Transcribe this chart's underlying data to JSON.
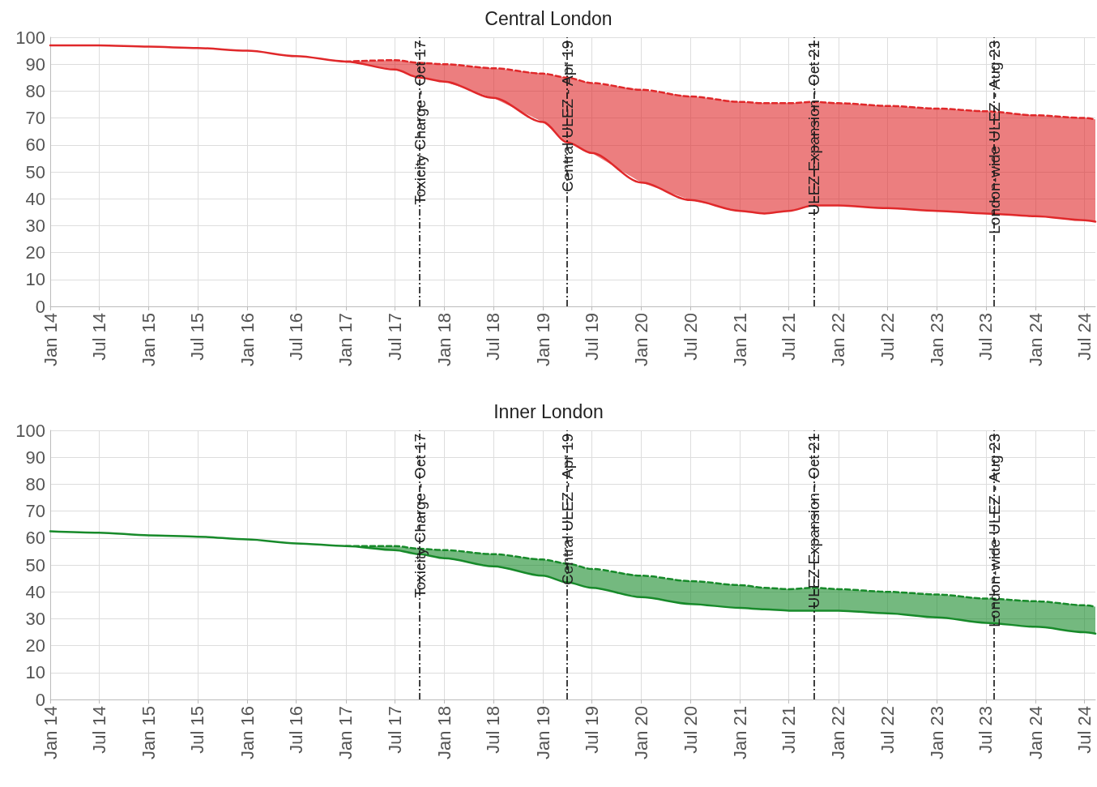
{
  "chart_data": [
    {
      "type": "line",
      "title": "Central London",
      "x": [
        "2014-01",
        "2014-07",
        "2015-01",
        "2015-07",
        "2016-01",
        "2016-07",
        "2017-01",
        "2017-07",
        "2017-10",
        "2018-01",
        "2018-07",
        "2019-01",
        "2019-04",
        "2019-07",
        "2020-01",
        "2020-07",
        "2021-01",
        "2021-04",
        "2021-07",
        "2021-10",
        "2022-01",
        "2022-07",
        "2023-01",
        "2023-07",
        "2024-01",
        "2024-07",
        "2024-08-10"
      ],
      "series": [
        {
          "color": "#e0282a",
          "line_style": "solid",
          "values": [
            97,
            97,
            96.5,
            96,
            95,
            93,
            91,
            88,
            85,
            83.5,
            77.5,
            68.5,
            61,
            57,
            46,
            39.5,
            35.5,
            34.5,
            35.5,
            37.5,
            37.5,
            36.5,
            35.5,
            34.5,
            33.5,
            32,
            31.5
          ]
        },
        {
          "color": "#e0282a",
          "line_style": "dashed",
          "values": [
            null,
            null,
            null,
            null,
            null,
            null,
            91,
            91.5,
            90.5,
            90,
            88.5,
            86.5,
            85,
            83,
            80.5,
            78,
            76,
            75.5,
            75.5,
            76,
            75.5,
            74.5,
            73.5,
            72.5,
            71,
            70,
            69.5
          ],
          "lower": [
            null,
            null,
            null,
            null,
            null,
            null,
            91,
            88,
            85,
            83.5,
            77.5,
            68.5,
            61,
            57,
            46,
            39.5,
            35.5,
            34.5,
            35.5,
            37.5,
            37.5,
            36.5,
            35.5,
            34.5,
            33.5,
            32,
            31.5
          ],
          "upper": [
            null,
            null,
            null,
            null,
            null,
            null,
            91,
            91.5,
            90.5,
            90,
            88.5,
            86.5,
            85,
            83,
            80.5,
            78,
            76,
            75.5,
            75.5,
            76,
            75.5,
            74.5,
            73.5,
            72.5,
            71,
            70,
            69.5
          ]
        }
      ],
      "xlim": [
        "2014-01",
        "2024-08-10"
      ],
      "xticks": [
        {
          "value": "2014-01",
          "label": "Jan 14"
        },
        {
          "value": "2014-07",
          "label": "Jul 14"
        },
        {
          "value": "2015-01",
          "label": "Jan 15"
        },
        {
          "value": "2015-07",
          "label": "Jul 15"
        },
        {
          "value": "2016-01",
          "label": "Jan 16"
        },
        {
          "value": "2016-07",
          "label": "Jul 16"
        },
        {
          "value": "2017-01",
          "label": "Jan 17"
        },
        {
          "value": "2017-07",
          "label": "Jul 17"
        },
        {
          "value": "2018-01",
          "label": "Jan 18"
        },
        {
          "value": "2018-07",
          "label": "Jul 18"
        },
        {
          "value": "2019-01",
          "label": "Jan 19"
        },
        {
          "value": "2019-07",
          "label": "Jul 19"
        },
        {
          "value": "2020-01",
          "label": "Jan 20"
        },
        {
          "value": "2020-07",
          "label": "Jul 20"
        },
        {
          "value": "2021-01",
          "label": "Jan 21"
        },
        {
          "value": "2021-07",
          "label": "Jul 21"
        },
        {
          "value": "2022-01",
          "label": "Jan 22"
        },
        {
          "value": "2022-07",
          "label": "Jul 22"
        },
        {
          "value": "2023-01",
          "label": "Jan 23"
        },
        {
          "value": "2023-07",
          "label": "Jul 23"
        },
        {
          "value": "2024-01",
          "label": "Jan 24"
        },
        {
          "value": "2024-07",
          "label": "Jul 24"
        }
      ],
      "ylim": [
        0,
        100
      ],
      "yticks": [
        0,
        10,
        20,
        30,
        40,
        50,
        60,
        70,
        80,
        90,
        100
      ],
      "grid": true,
      "marker": "none",
      "ref_lines": [
        {
          "axis": "x",
          "value": "2017-10",
          "label": "Toxicity Charge - Oct 17",
          "color": "#000000",
          "line_style": "dashdot"
        },
        {
          "axis": "x",
          "value": "2019-04",
          "label": "Central ULEZ - Apr 19",
          "color": "#000000",
          "line_style": "dashdot"
        },
        {
          "axis": "x",
          "value": "2021-10",
          "label": "ULEZ Expansion - Oct 21",
          "color": "#000000",
          "line_style": "dashdot"
        },
        {
          "axis": "x",
          "value": "2023-08",
          "label": "London-wide ULEZ - Aug 23",
          "color": "#000000",
          "line_style": "dashdot"
        }
      ]
    },
    {
      "type": "line",
      "title": "Inner London",
      "x": [
        "2014-01",
        "2014-07",
        "2015-01",
        "2015-07",
        "2016-01",
        "2016-07",
        "2017-01",
        "2017-07",
        "2017-10",
        "2018-01",
        "2018-07",
        "2019-01",
        "2019-04",
        "2019-07",
        "2020-01",
        "2020-07",
        "2021-01",
        "2021-04",
        "2021-07",
        "2021-10",
        "2022-01",
        "2022-07",
        "2023-01",
        "2023-07",
        "2024-01",
        "2024-07",
        "2024-08-10"
      ],
      "series": [
        {
          "color": "#178a2a",
          "line_style": "solid",
          "values": [
            62.5,
            62,
            61,
            60.5,
            59.5,
            58,
            57,
            55.5,
            54,
            52.5,
            49.5,
            46,
            43.5,
            41.5,
            38,
            35.5,
            34,
            33.5,
            33,
            33,
            33,
            32,
            30.5,
            28.5,
            27,
            25,
            24.5
          ]
        },
        {
          "color": "#178a2a",
          "line_style": "dashed",
          "values": [
            null,
            null,
            null,
            null,
            null,
            null,
            57,
            57,
            56,
            55.5,
            54,
            52,
            50.5,
            48.5,
            46,
            44,
            42.5,
            41.5,
            41,
            41.5,
            41,
            40,
            39,
            37.5,
            36.5,
            35,
            34.5
          ],
          "lower": [
            null,
            null,
            null,
            null,
            null,
            null,
            57,
            55.5,
            54,
            52.5,
            49.5,
            46,
            43.5,
            41.5,
            38,
            35.5,
            34,
            33.5,
            33,
            33,
            33,
            32,
            30.5,
            28.5,
            27,
            25,
            24.5
          ],
          "upper": [
            null,
            null,
            null,
            null,
            null,
            null,
            57,
            57,
            56,
            55.5,
            54,
            52,
            50.5,
            48.5,
            46,
            44,
            42.5,
            41.5,
            41,
            41.5,
            41,
            40,
            39,
            37.5,
            36.5,
            35,
            34.5
          ]
        }
      ],
      "xlim": [
        "2014-01",
        "2024-08-10"
      ],
      "xticks": [
        {
          "value": "2014-01",
          "label": "Jan 14"
        },
        {
          "value": "2014-07",
          "label": "Jul 14"
        },
        {
          "value": "2015-01",
          "label": "Jan 15"
        },
        {
          "value": "2015-07",
          "label": "Jul 15"
        },
        {
          "value": "2016-01",
          "label": "Jan 16"
        },
        {
          "value": "2016-07",
          "label": "Jul 16"
        },
        {
          "value": "2017-01",
          "label": "Jan 17"
        },
        {
          "value": "2017-07",
          "label": "Jul 17"
        },
        {
          "value": "2018-01",
          "label": "Jan 18"
        },
        {
          "value": "2018-07",
          "label": "Jul 18"
        },
        {
          "value": "2019-01",
          "label": "Jan 19"
        },
        {
          "value": "2019-07",
          "label": "Jul 19"
        },
        {
          "value": "2020-01",
          "label": "Jan 20"
        },
        {
          "value": "2020-07",
          "label": "Jul 20"
        },
        {
          "value": "2021-01",
          "label": "Jan 21"
        },
        {
          "value": "2021-07",
          "label": "Jul 21"
        },
        {
          "value": "2022-01",
          "label": "Jan 22"
        },
        {
          "value": "2022-07",
          "label": "Jul 22"
        },
        {
          "value": "2023-01",
          "label": "Jan 23"
        },
        {
          "value": "2023-07",
          "label": "Jul 23"
        },
        {
          "value": "2024-01",
          "label": "Jan 24"
        },
        {
          "value": "2024-07",
          "label": "Jul 24"
        }
      ],
      "ylim": [
        0,
        100
      ],
      "yticks": [
        0,
        10,
        20,
        30,
        40,
        50,
        60,
        70,
        80,
        90,
        100
      ],
      "grid": true,
      "marker": "none",
      "ref_lines": [
        {
          "axis": "x",
          "value": "2017-10",
          "label": "Toxicity Charge - Oct 17",
          "color": "#000000",
          "line_style": "dashdot"
        },
        {
          "axis": "x",
          "value": "2019-04",
          "label": "Central ULEZ - Apr 19",
          "color": "#000000",
          "line_style": "dashdot"
        },
        {
          "axis": "x",
          "value": "2021-10",
          "label": "ULEZ Expansion - Oct 21",
          "color": "#000000",
          "line_style": "dashdot"
        },
        {
          "axis": "x",
          "value": "2023-08",
          "label": "London-wide ULEZ - Aug 23",
          "color": "#000000",
          "line_style": "dashdot"
        }
      ]
    }
  ]
}
